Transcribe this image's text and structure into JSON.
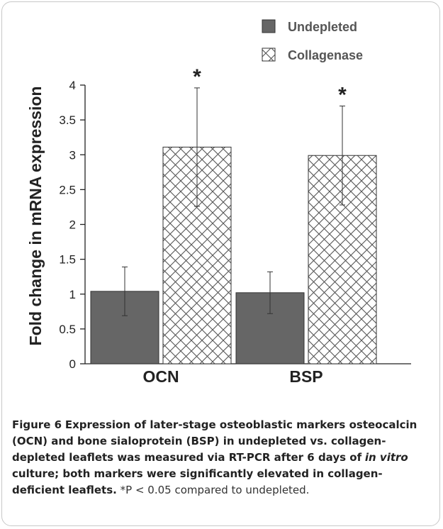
{
  "chart_data": {
    "type": "bar",
    "categories": [
      "OCN",
      "BSP"
    ],
    "series": [
      {
        "name": "Undepleted",
        "values": [
          1.04,
          1.02
        ],
        "error": [
          0.35,
          0.3
        ],
        "color": "#666666",
        "fill": "solid"
      },
      {
        "name": "Collagenase",
        "values": [
          3.11,
          2.99
        ],
        "error": [
          0.85,
          0.71
        ],
        "color": "#555555",
        "fill": "crosshatch"
      }
    ],
    "annotations": [
      {
        "category": "OCN",
        "series": "Collagenase",
        "text": "*"
      },
      {
        "category": "BSP",
        "series": "Collagenase",
        "text": "*"
      }
    ],
    "ylabel": "Fold change in mRNA expression",
    "xlabel": "",
    "ylim": [
      0,
      4
    ],
    "yticks": [
      "0",
      "0.5",
      "1",
      "1.5",
      "2",
      "2.5",
      "3",
      "3.5",
      "4"
    ],
    "legend_position": "top-right",
    "grid": false
  },
  "caption": {
    "label": "Figure 6",
    "bold_text": "Expression of later-stage osteoblastic markers osteocalcin (OCN) and bone sialoprotein (BSP) in undepleted vs. collagen-depleted leaflets was measured via RT-PCR after 6 days of",
    "italic_text": "in vitro",
    "bold_text_2": "culture; both markers were significantly elevated in collagen-deficient leaflets.",
    "note": "*P < 0.05 compared to undepleted."
  }
}
